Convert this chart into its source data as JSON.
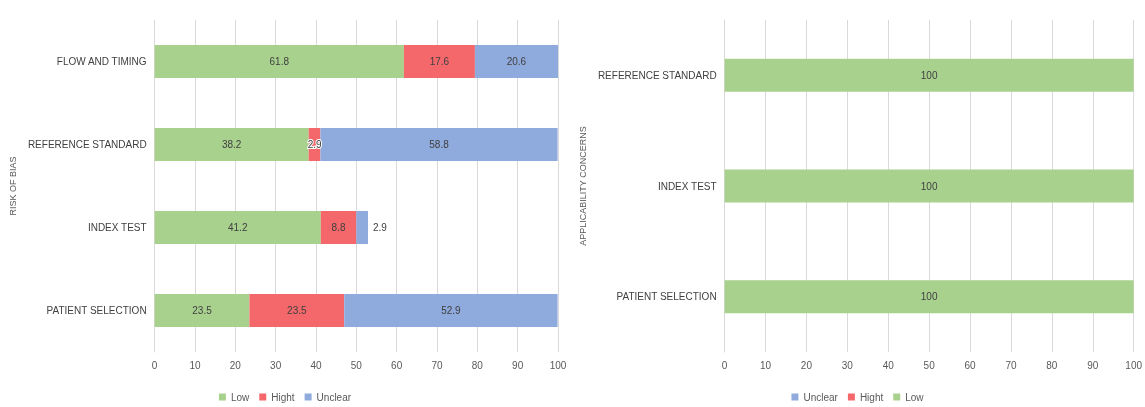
{
  "chart_data": [
    {
      "type": "bar",
      "orientation": "horizontal",
      "stacked": true,
      "ylabel": "RISK OF BIAS",
      "categories": [
        "FLOW AND TIMING",
        "REFERENCE STANDARD",
        "INDEX TEST",
        "PATIENT SELECTION"
      ],
      "series": [
        {
          "name": "Low",
          "color": "#a9d18e",
          "values": [
            61.8,
            38.2,
            41.2,
            23.5
          ]
        },
        {
          "name": "Hight",
          "color": "#f4676a",
          "values": [
            17.6,
            2.9,
            8.8,
            23.5
          ]
        },
        {
          "name": "Unclear",
          "color": "#8faadc",
          "values": [
            20.6,
            58.8,
            2.9,
            52.9
          ]
        }
      ],
      "xlim": [
        0,
        100
      ],
      "xticks": [
        0,
        10,
        20,
        30,
        40,
        50,
        60,
        70,
        80,
        90,
        100
      ],
      "grid": "x",
      "legend": "bottom",
      "data_labels": true
    },
    {
      "type": "bar",
      "orientation": "horizontal",
      "stacked": true,
      "ylabel": "APPLICABILITY CONCERNS",
      "categories": [
        "REFERENCE STANDARD",
        "INDEX TEST",
        "PATIENT SELECTION"
      ],
      "series": [
        {
          "name": "Unclear",
          "color": "#8faadc",
          "values": [
            null,
            null,
            null
          ]
        },
        {
          "name": "Hight",
          "color": "#f4676a",
          "values": [
            null,
            null,
            null
          ]
        },
        {
          "name": "Low",
          "color": "#a9d18e",
          "values": [
            100,
            100,
            100
          ]
        }
      ],
      "xlim": [
        0,
        100
      ],
      "xticks": [
        0,
        10,
        20,
        30,
        40,
        50,
        60,
        70,
        80,
        90,
        100
      ],
      "grid": "x",
      "legend": "bottom",
      "data_labels": true
    }
  ]
}
